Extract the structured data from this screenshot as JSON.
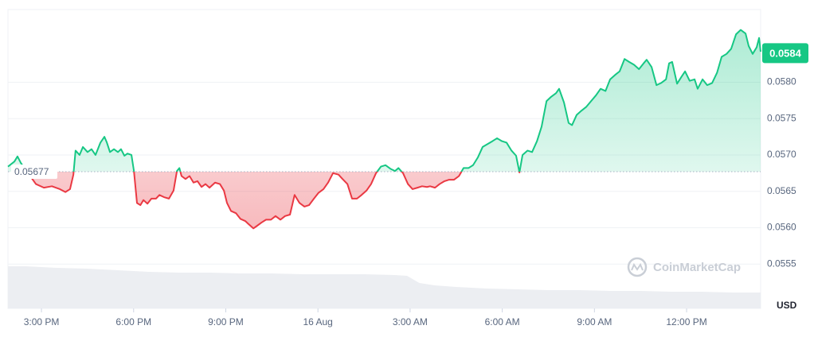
{
  "chart_data": {
    "type": "price-line",
    "x": [
      13.91,
      14.12,
      14.22,
      14.33,
      14.82,
      15.08,
      15.34,
      15.6,
      15.78,
      15.93,
      16.04,
      16.11,
      16.24,
      16.35,
      16.5,
      16.63,
      16.76,
      16.92,
      17.05,
      17.13,
      17.23,
      17.36,
      17.49,
      17.59,
      17.7,
      17.8,
      17.93,
      18.01,
      18.11,
      18.22,
      18.32,
      18.45,
      18.58,
      18.73,
      18.84,
      18.99,
      19.15,
      19.3,
      19.41,
      19.49,
      19.56,
      19.69,
      19.82,
      19.95,
      20.08,
      20.21,
      20.34,
      20.47,
      20.65,
      20.81,
      20.94,
      21.04,
      21.17,
      21.33,
      21.48,
      21.64,
      21.74,
      21.9,
      22.0,
      22.16,
      22.31,
      22.47,
      22.62,
      22.78,
      22.93,
      23.09,
      23.24,
      23.4,
      23.56,
      23.71,
      23.87,
      24.02,
      24.18,
      24.33,
      24.49,
      24.67,
      24.8,
      24.96,
      25.11,
      25.27,
      25.42,
      25.58,
      25.73,
      25.89,
      26.05,
      26.2,
      26.36,
      26.51,
      26.62,
      26.77,
      26.93,
      27.08,
      27.24,
      27.39,
      27.55,
      27.65,
      27.81,
      27.96,
      28.12,
      28.27,
      28.43,
      28.59,
      28.74,
      28.9,
      29.05,
      29.21,
      29.36,
      29.52,
      29.68,
      29.83,
      29.99,
      30.14,
      30.3,
      30.45,
      30.56,
      30.66,
      30.82,
      30.97,
      31.13,
      31.28,
      31.44,
      31.59,
      31.75,
      31.85,
      32.01,
      32.16,
      32.27,
      32.42,
      32.58,
      32.73,
      32.89,
      33.05,
      33.2,
      33.36,
      33.51,
      33.67,
      33.82,
      33.98,
      34.13,
      34.29,
      34.45,
      34.6,
      34.7,
      34.86,
      35.02,
      35.17,
      35.33,
      35.43,
      35.53,
      35.69,
      35.84,
      35.95,
      36.1,
      36.26,
      36.36,
      36.52,
      36.67,
      36.83,
      36.99,
      37.14,
      37.3,
      37.45,
      37.61,
      37.76,
      37.92,
      38.02,
      38.15,
      38.28,
      38.36,
      38.41
    ],
    "values": [
      0.05684,
      0.05691,
      0.05698,
      0.05689,
      0.0566,
      0.05655,
      0.05657,
      0.05653,
      0.05649,
      0.05653,
      0.05673,
      0.05706,
      0.057,
      0.05711,
      0.05704,
      0.05708,
      0.057,
      0.05717,
      0.05725,
      0.05717,
      0.05704,
      0.05708,
      0.05704,
      0.05708,
      0.05699,
      0.05702,
      0.057,
      0.05678,
      0.05634,
      0.05631,
      0.05638,
      0.05633,
      0.0564,
      0.0564,
      0.05645,
      0.05642,
      0.0564,
      0.05651,
      0.05678,
      0.05682,
      0.05671,
      0.05667,
      0.05671,
      0.05662,
      0.05664,
      0.05656,
      0.0566,
      0.05655,
      0.05662,
      0.0566,
      0.05651,
      0.05634,
      0.05623,
      0.0562,
      0.05612,
      0.05609,
      0.05605,
      0.05599,
      0.05602,
      0.05607,
      0.05611,
      0.05611,
      0.05616,
      0.05611,
      0.05616,
      0.05618,
      0.05645,
      0.05634,
      0.05629,
      0.05631,
      0.0564,
      0.05648,
      0.05653,
      0.05662,
      0.05675,
      0.05673,
      0.05667,
      0.0566,
      0.0564,
      0.0564,
      0.05645,
      0.05651,
      0.0566,
      0.05675,
      0.05684,
      0.05686,
      0.05681,
      0.05678,
      0.05682,
      0.05675,
      0.0566,
      0.05653,
      0.05655,
      0.05657,
      0.05656,
      0.05657,
      0.05655,
      0.0566,
      0.05664,
      0.05666,
      0.05666,
      0.05671,
      0.05682,
      0.05682,
      0.05686,
      0.05697,
      0.05711,
      0.05715,
      0.05719,
      0.05723,
      0.05719,
      0.05717,
      0.05706,
      0.05699,
      0.05676,
      0.057,
      0.05706,
      0.05704,
      0.05719,
      0.05739,
      0.05774,
      0.0578,
      0.05785,
      0.05791,
      0.05772,
      0.05744,
      0.05741,
      0.05755,
      0.05761,
      0.05766,
      0.05774,
      0.05782,
      0.05791,
      0.05788,
      0.05804,
      0.0581,
      0.05815,
      0.05832,
      0.05828,
      0.05824,
      0.05818,
      0.05826,
      0.05831,
      0.05821,
      0.05796,
      0.05799,
      0.05804,
      0.05826,
      0.05828,
      0.05798,
      0.05808,
      0.05815,
      0.05802,
      0.05804,
      0.05791,
      0.05804,
      0.05796,
      0.05799,
      0.05813,
      0.05835,
      0.05839,
      0.05846,
      0.05866,
      0.05872,
      0.05867,
      0.0585,
      0.05839,
      0.05848,
      0.05861,
      0.05842
    ],
    "baseline": 0.05677,
    "last_price": 0.0584,
    "up_color": "#16c784",
    "down_color": "#ea3943",
    "volume": {
      "x": [
        13.91,
        14.5,
        15.5,
        16.5,
        17.5,
        18.5,
        19.5,
        20.5,
        21.5,
        22.5,
        23.5,
        24.5,
        25.5,
        26.5,
        26.9,
        27.3,
        27.8,
        28.5,
        29.5,
        30.5,
        31.5,
        32.5,
        33.5,
        34.5,
        35.5,
        36.5,
        37.5,
        38.41
      ],
      "values": [
        53,
        53,
        51,
        50,
        48,
        46,
        45,
        45,
        44,
        44,
        43,
        43,
        43,
        42,
        41,
        32,
        29,
        27,
        25,
        24,
        23,
        23,
        22,
        22,
        21,
        21,
        20,
        20
      ],
      "ylim": [
        0,
        376
      ],
      "color": "#eceef2"
    },
    "xlim": [
      13.91,
      38.41
    ],
    "xticks": [
      {
        "value": 15,
        "label": "3:00 PM"
      },
      {
        "value": 18,
        "label": "6:00 PM"
      },
      {
        "value": 21,
        "label": "9:00 PM"
      },
      {
        "value": 24,
        "label": "16 Aug"
      },
      {
        "value": 27,
        "label": "3:00 AM"
      },
      {
        "value": 30,
        "label": "6:00 AM"
      },
      {
        "value": 33,
        "label": "9:00 AM"
      },
      {
        "value": 36,
        "label": "12:00 PM"
      }
    ],
    "ylim": [
      0.05489,
      0.059
    ],
    "yticks": [
      0.0555,
      {
        "value": 0.056,
        "label": "0.0560"
      },
      0.0565,
      {
        "value": 0.057,
        "label": "0.0570"
      },
      0.0575,
      {
        "value": 0.058,
        "label": "0.0580"
      }
    ],
    "y_label": "USD",
    "watermark": "CoinMarketCap",
    "grid": true
  }
}
